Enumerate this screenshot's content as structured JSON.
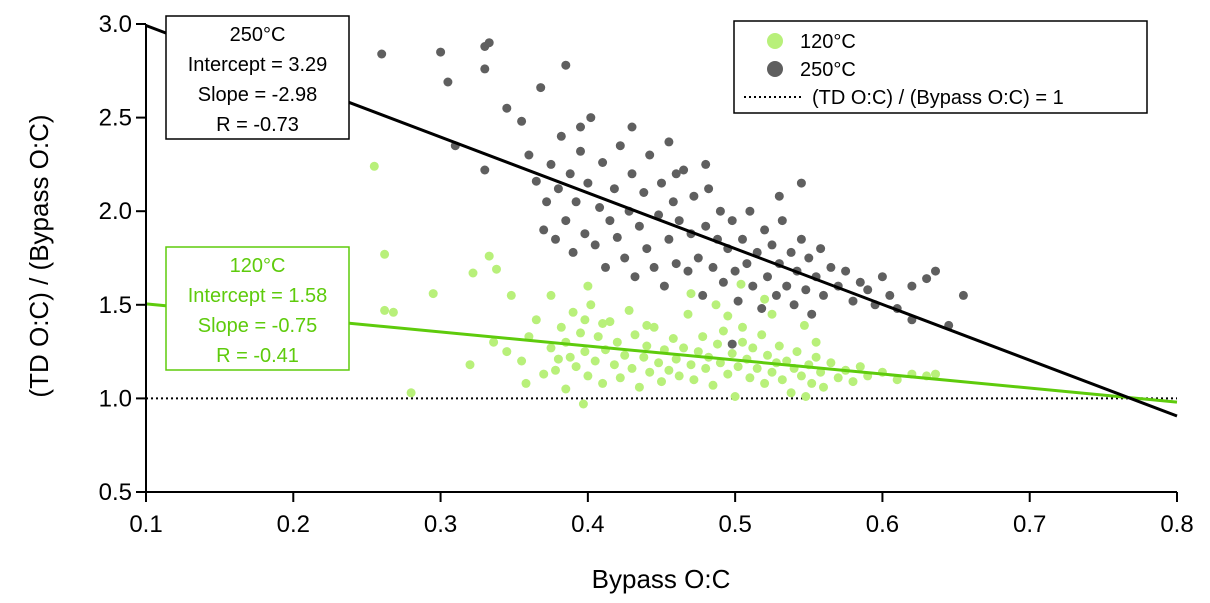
{
  "chart_data": {
    "type": "scatter",
    "xlabel": "Bypass O:C",
    "ylabel": "(TD O:C) / (Bypass O:C)",
    "xlim": [
      0.1,
      0.8
    ],
    "ylim": [
      0.5,
      3.0
    ],
    "x_ticks": [
      0.1,
      0.2,
      0.3,
      0.4,
      0.5,
      0.6,
      0.7,
      0.8
    ],
    "x_tick_labels": [
      "0.1",
      "0.2",
      "0.3",
      "0.4",
      "0.5",
      "0.6",
      "0.7",
      "0.8"
    ],
    "y_ticks": [
      0.5,
      1.0,
      1.5,
      2.0,
      2.5,
      3.0
    ],
    "y_tick_labels": [
      "0.5",
      "1.0",
      "1.5",
      "2.0",
      "2.5",
      "3.0"
    ],
    "legend_position": "top-right",
    "legend": [
      {
        "label": "120°C",
        "kind": "marker",
        "color": "#b8f07a"
      },
      {
        "label": "250°C",
        "kind": "marker",
        "color": "#5f5f5f"
      },
      {
        "label": "(TD O:C) / (Bypass O:C) = 1",
        "kind": "dotted-line",
        "color": "#000000"
      }
    ],
    "series": [
      {
        "name": "120°C",
        "color": "#b8f07a",
        "fit_color": "#5ecb0c",
        "fit": {
          "intercept": 1.58,
          "slope": -0.75,
          "r": -0.41
        },
        "points": [
          [
            0.255,
            2.24
          ],
          [
            0.262,
            1.77
          ],
          [
            0.262,
            1.47
          ],
          [
            0.268,
            1.46
          ],
          [
            0.28,
            1.03
          ],
          [
            0.295,
            1.56
          ],
          [
            0.32,
            1.18
          ],
          [
            0.322,
            1.67
          ],
          [
            0.333,
            1.76
          ],
          [
            0.336,
            1.3
          ],
          [
            0.338,
            1.69
          ],
          [
            0.345,
            1.25
          ],
          [
            0.348,
            1.55
          ],
          [
            0.355,
            1.2
          ],
          [
            0.358,
            1.08
          ],
          [
            0.36,
            1.33
          ],
          [
            0.365,
            1.42
          ],
          [
            0.37,
            1.13
          ],
          [
            0.375,
            1.27
          ],
          [
            0.375,
            1.55
          ],
          [
            0.378,
            1.15
          ],
          [
            0.38,
            1.21
          ],
          [
            0.382,
            1.38
          ],
          [
            0.385,
            1.05
          ],
          [
            0.385,
            1.3
          ],
          [
            0.388,
            1.22
          ],
          [
            0.39,
            1.46
          ],
          [
            0.392,
            1.17
          ],
          [
            0.395,
            1.35
          ],
          [
            0.397,
            0.97
          ],
          [
            0.398,
            1.25
          ],
          [
            0.4,
            1.12
          ],
          [
            0.402,
            1.5
          ],
          [
            0.405,
            1.2
          ],
          [
            0.407,
            1.33
          ],
          [
            0.41,
            1.08
          ],
          [
            0.412,
            1.26
          ],
          [
            0.415,
            1.41
          ],
          [
            0.418,
            1.18
          ],
          [
            0.42,
            1.3
          ],
          [
            0.422,
            1.11
          ],
          [
            0.425,
            1.23
          ],
          [
            0.428,
            1.47
          ],
          [
            0.43,
            1.16
          ],
          [
            0.432,
            1.34
          ],
          [
            0.435,
            1.06
          ],
          [
            0.438,
            1.22
          ],
          [
            0.44,
            1.28
          ],
          [
            0.442,
            1.14
          ],
          [
            0.445,
            1.38
          ],
          [
            0.448,
            1.19
          ],
          [
            0.45,
            1.09
          ],
          [
            0.452,
            1.26
          ],
          [
            0.455,
            1.15
          ],
          [
            0.458,
            1.32
          ],
          [
            0.46,
            1.21
          ],
          [
            0.462,
            1.12
          ],
          [
            0.465,
            1.27
          ],
          [
            0.468,
            1.45
          ],
          [
            0.47,
            1.18
          ],
          [
            0.472,
            1.1
          ],
          [
            0.475,
            1.25
          ],
          [
            0.478,
            1.33
          ],
          [
            0.48,
            1.16
          ],
          [
            0.482,
            1.22
          ],
          [
            0.485,
            1.07
          ],
          [
            0.488,
            1.29
          ],
          [
            0.49,
            1.19
          ],
          [
            0.492,
            1.36
          ],
          [
            0.495,
            1.13
          ],
          [
            0.498,
            1.24
          ],
          [
            0.5,
            1.01
          ],
          [
            0.502,
            1.17
          ],
          [
            0.505,
            1.3
          ],
          [
            0.508,
            1.21
          ],
          [
            0.51,
            1.11
          ],
          [
            0.512,
            1.27
          ],
          [
            0.515,
            1.16
          ],
          [
            0.518,
            1.34
          ],
          [
            0.52,
            1.08
          ],
          [
            0.522,
            1.23
          ],
          [
            0.525,
            1.14
          ],
          [
            0.528,
            1.19
          ],
          [
            0.53,
            1.28
          ],
          [
            0.532,
            1.1
          ],
          [
            0.535,
            1.2
          ],
          [
            0.538,
            1.03
          ],
          [
            0.54,
            1.16
          ],
          [
            0.542,
            1.25
          ],
          [
            0.545,
            1.12
          ],
          [
            0.548,
            1.01
          ],
          [
            0.55,
            1.18
          ],
          [
            0.552,
            1.08
          ],
          [
            0.555,
            1.22
          ],
          [
            0.558,
            1.14
          ],
          [
            0.56,
            1.06
          ],
          [
            0.565,
            1.19
          ],
          [
            0.57,
            1.11
          ],
          [
            0.575,
            1.15
          ],
          [
            0.58,
            1.09
          ],
          [
            0.585,
            1.17
          ],
          [
            0.59,
            1.12
          ],
          [
            0.6,
            1.14
          ],
          [
            0.61,
            1.1
          ],
          [
            0.62,
            1.13
          ],
          [
            0.63,
            1.12
          ],
          [
            0.636,
            1.13
          ],
          [
            0.398,
            1.42
          ],
          [
            0.41,
            1.4
          ],
          [
            0.44,
            1.39
          ],
          [
            0.495,
            1.44
          ],
          [
            0.525,
            1.45
          ],
          [
            0.547,
            1.39
          ],
          [
            0.504,
            1.61
          ],
          [
            0.52,
            1.53
          ],
          [
            0.47,
            1.56
          ],
          [
            0.4,
            1.6
          ],
          [
            0.555,
            1.3
          ],
          [
            0.505,
            1.38
          ],
          [
            0.487,
            1.5
          ]
        ]
      },
      {
        "name": "250°C",
        "color": "#5f5f5f",
        "fit_color": "#000000",
        "fit": {
          "intercept": 3.29,
          "slope": -2.98,
          "r": -0.73
        },
        "points": [
          [
            0.26,
            2.84
          ],
          [
            0.3,
            2.85
          ],
          [
            0.305,
            2.69
          ],
          [
            0.33,
            2.76
          ],
          [
            0.33,
            2.88
          ],
          [
            0.333,
            2.9
          ],
          [
            0.385,
            2.78
          ],
          [
            0.31,
            2.35
          ],
          [
            0.33,
            2.22
          ],
          [
            0.345,
            2.55
          ],
          [
            0.355,
            2.48
          ],
          [
            0.36,
            2.3
          ],
          [
            0.365,
            2.16
          ],
          [
            0.368,
            2.66
          ],
          [
            0.37,
            1.9
          ],
          [
            0.372,
            2.05
          ],
          [
            0.375,
            2.25
          ],
          [
            0.378,
            1.85
          ],
          [
            0.38,
            2.12
          ],
          [
            0.382,
            2.4
          ],
          [
            0.385,
            1.95
          ],
          [
            0.388,
            2.2
          ],
          [
            0.39,
            1.78
          ],
          [
            0.392,
            2.05
          ],
          [
            0.395,
            2.32
          ],
          [
            0.398,
            1.88
          ],
          [
            0.4,
            2.15
          ],
          [
            0.402,
            2.5
          ],
          [
            0.405,
            1.82
          ],
          [
            0.408,
            2.02
          ],
          [
            0.41,
            2.26
          ],
          [
            0.412,
            1.7
          ],
          [
            0.415,
            1.95
          ],
          [
            0.418,
            2.12
          ],
          [
            0.42,
            1.86
          ],
          [
            0.422,
            2.35
          ],
          [
            0.425,
            1.75
          ],
          [
            0.428,
            2.0
          ],
          [
            0.43,
            2.2
          ],
          [
            0.432,
            1.65
          ],
          [
            0.435,
            1.92
          ],
          [
            0.438,
            2.1
          ],
          [
            0.44,
            1.8
          ],
          [
            0.442,
            2.3
          ],
          [
            0.445,
            1.7
          ],
          [
            0.448,
            1.98
          ],
          [
            0.45,
            2.15
          ],
          [
            0.452,
            1.6
          ],
          [
            0.455,
            1.85
          ],
          [
            0.458,
            2.05
          ],
          [
            0.46,
            1.72
          ],
          [
            0.462,
            1.95
          ],
          [
            0.465,
            2.22
          ],
          [
            0.468,
            1.68
          ],
          [
            0.47,
            1.88
          ],
          [
            0.472,
            2.08
          ],
          [
            0.475,
            1.75
          ],
          [
            0.478,
            1.55
          ],
          [
            0.48,
            1.92
          ],
          [
            0.482,
            2.12
          ],
          [
            0.485,
            1.7
          ],
          [
            0.488,
            1.85
          ],
          [
            0.49,
            2.0
          ],
          [
            0.492,
            1.62
          ],
          [
            0.495,
            1.8
          ],
          [
            0.498,
            1.95
          ],
          [
            0.5,
            1.68
          ],
          [
            0.502,
            1.52
          ],
          [
            0.505,
            1.85
          ],
          [
            0.508,
            1.72
          ],
          [
            0.51,
            2.0
          ],
          [
            0.512,
            1.6
          ],
          [
            0.515,
            1.78
          ],
          [
            0.518,
            1.48
          ],
          [
            0.52,
            1.9
          ],
          [
            0.522,
            1.65
          ],
          [
            0.525,
            1.82
          ],
          [
            0.528,
            1.55
          ],
          [
            0.53,
            1.72
          ],
          [
            0.532,
            1.95
          ],
          [
            0.535,
            1.6
          ],
          [
            0.538,
            1.78
          ],
          [
            0.54,
            1.5
          ],
          [
            0.542,
            1.68
          ],
          [
            0.545,
            1.85
          ],
          [
            0.548,
            1.58
          ],
          [
            0.55,
            1.75
          ],
          [
            0.552,
            1.45
          ],
          [
            0.555,
            1.65
          ],
          [
            0.558,
            1.8
          ],
          [
            0.56,
            1.55
          ],
          [
            0.565,
            1.7
          ],
          [
            0.57,
            1.6
          ],
          [
            0.575,
            1.68
          ],
          [
            0.58,
            1.52
          ],
          [
            0.585,
            1.62
          ],
          [
            0.59,
            1.58
          ],
          [
            0.595,
            1.5
          ],
          [
            0.6,
            1.65
          ],
          [
            0.605,
            1.55
          ],
          [
            0.61,
            1.48
          ],
          [
            0.62,
            1.6
          ],
          [
            0.63,
            1.64
          ],
          [
            0.636,
            1.68
          ],
          [
            0.645,
            1.39
          ],
          [
            0.545,
            2.15
          ],
          [
            0.53,
            2.08
          ],
          [
            0.455,
            2.37
          ],
          [
            0.48,
            2.25
          ],
          [
            0.43,
            2.45
          ],
          [
            0.46,
            2.2
          ],
          [
            0.395,
            2.45
          ],
          [
            0.498,
            1.29
          ],
          [
            0.62,
            1.42
          ],
          [
            0.655,
            1.55
          ]
        ]
      }
    ],
    "reference_line": {
      "y": 1.0,
      "style": "dotted",
      "color": "#000000"
    },
    "annotations": [
      {
        "position": "top-left",
        "color": "#000000",
        "lines": [
          "250°C",
          "Intercept = 3.29",
          "Slope = -2.98",
          "R = -0.73"
        ]
      },
      {
        "position": "middle-left",
        "color": "#5ecb0c",
        "lines": [
          "120°C",
          "Intercept = 1.58",
          "Slope = -0.75",
          "R = -0.41"
        ]
      }
    ]
  }
}
